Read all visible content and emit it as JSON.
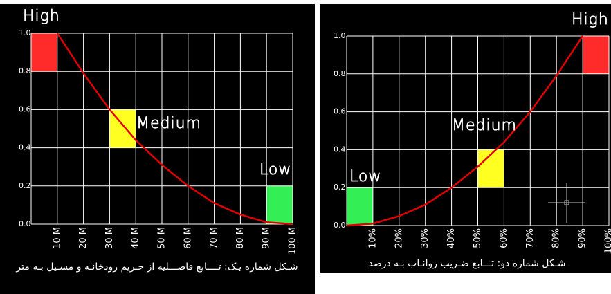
{
  "chart_data": [
    {
      "type": "line",
      "x": [
        10,
        20,
        30,
        40,
        50,
        60,
        70,
        80,
        90,
        100
      ],
      "series": [
        {
          "color": "#e00000",
          "values": [
            1.0,
            0.79,
            0.6,
            0.44,
            0.31,
            0.2,
            0.11,
            0.05,
            0.01,
            0
          ]
        }
      ],
      "regions": [
        {
          "label": "High",
          "color": "#ff2a2a",
          "x": [
            0,
            10
          ],
          "y": [
            0.8,
            1.0
          ]
        },
        {
          "label": "Medium",
          "color": "#ffff22",
          "x": [
            30,
            40
          ],
          "y": [
            0.4,
            0.6
          ]
        },
        {
          "label": "Low",
          "color": "#33ee55",
          "x": [
            90,
            100
          ],
          "y": [
            0,
            0.2
          ]
        }
      ],
      "xlim": [
        0,
        100
      ],
      "ylim": [
        0,
        1
      ],
      "xticks": [
        {
          "value": 10,
          "label": "10 M"
        },
        {
          "value": 20,
          "label": "20 M"
        },
        {
          "value": 30,
          "label": "30 M"
        },
        {
          "value": 40,
          "label": "40 M"
        },
        {
          "value": 50,
          "label": "50 M"
        },
        {
          "value": 60,
          "label": "60 M"
        },
        {
          "value": 70,
          "label": "70 M"
        },
        {
          "value": 80,
          "label": "80 M"
        },
        {
          "value": 90,
          "label": "90 M"
        },
        {
          "value": 100,
          "label": "100 M"
        }
      ],
      "yticks": [
        {
          "value": 0,
          "label": "0.0"
        },
        0.2,
        0.4,
        0.6,
        0.8,
        {
          "value": 1,
          "label": "1.0"
        }
      ],
      "grid": true,
      "caption": "شـكل شماره يـک: تــــابع فاصـــليه از حـريم رودخانـه و مسـيل بـه متر"
    },
    {
      "type": "line",
      "x": [
        0,
        10,
        20,
        30,
        40,
        50,
        60,
        70,
        80,
        90
      ],
      "series": [
        {
          "color": "#e00000",
          "values": [
            0,
            0.01,
            0.05,
            0.11,
            0.2,
            0.31,
            0.44,
            0.6,
            0.79,
            1.0
          ]
        }
      ],
      "regions": [
        {
          "label": "Low",
          "color": "#33ee55",
          "x": [
            0,
            10
          ],
          "y": [
            0,
            0.2
          ]
        },
        {
          "label": "Medium",
          "color": "#ffff22",
          "x": [
            50,
            60
          ],
          "y": [
            0.2,
            0.4
          ]
        },
        {
          "label": "High",
          "color": "#ff2a2a",
          "x": [
            90,
            100
          ],
          "y": [
            0.8,
            1.0
          ]
        }
      ],
      "xlim": [
        0,
        100
      ],
      "ylim": [
        0,
        1
      ],
      "xticks": [
        {
          "value": 10,
          "label": "10%"
        },
        {
          "value": 20,
          "label": "20%"
        },
        {
          "value": 30,
          "label": "30%"
        },
        {
          "value": 40,
          "label": "40%"
        },
        {
          "value": 50,
          "label": "50%"
        },
        {
          "value": 60,
          "label": "60%"
        },
        {
          "value": 70,
          "label": "70%"
        },
        {
          "value": 80,
          "label": "80%"
        },
        {
          "value": 90,
          "label": "90%"
        },
        {
          "value": 100,
          "label": "100%"
        }
      ],
      "yticks": [
        {
          "value": 0,
          "label": "0.0"
        },
        0.2,
        0.4,
        0.6,
        0.8,
        {
          "value": 1,
          "label": "1.0"
        }
      ],
      "grid": true,
      "caption": "شـكل شماره دو: تـــابع ضـريب روانـاب بـه درصد"
    }
  ]
}
